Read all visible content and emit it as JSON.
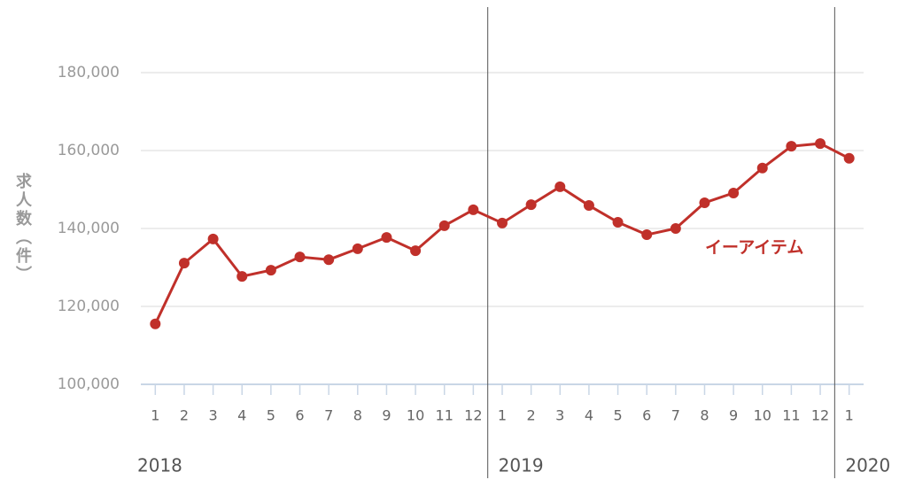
{
  "chart_data": {
    "type": "line",
    "y_label": "求人数（件）",
    "categories": [
      "1",
      "2",
      "3",
      "4",
      "5",
      "6",
      "7",
      "8",
      "9",
      "10",
      "11",
      "12",
      "1",
      "2",
      "3",
      "4",
      "5",
      "6",
      "7",
      "8",
      "9",
      "10",
      "11",
      "12",
      "1"
    ],
    "year_labels": [
      "2018",
      "2019",
      "2020"
    ],
    "series": [
      {
        "name": "イーアイテム",
        "color": "#c0302a",
        "values": [
          115500,
          131100,
          137300,
          127700,
          129300,
          132700,
          132000,
          134800,
          137700,
          134300,
          140700,
          144800,
          141400,
          146100,
          150700,
          145900,
          141600,
          138400,
          140000,
          146600,
          149100,
          155500,
          161100,
          161800,
          158000
        ]
      }
    ],
    "ylim": [
      100000,
      190000
    ],
    "yticks": [
      {
        "value": 100000,
        "label": "100,000"
      },
      {
        "value": 120000,
        "label": "120,000"
      },
      {
        "value": 140000,
        "label": "140,000"
      },
      {
        "value": 160000,
        "label": "160,000"
      },
      {
        "value": 180000,
        "label": "180,000"
      }
    ],
    "grid": true
  }
}
